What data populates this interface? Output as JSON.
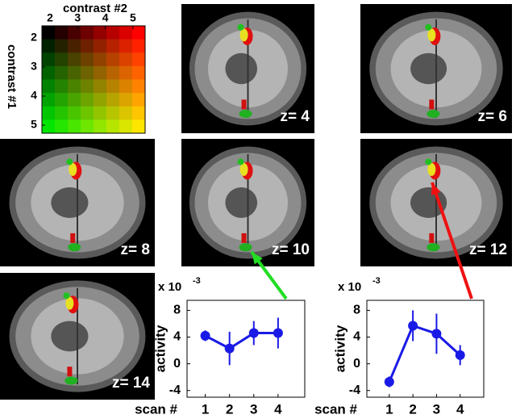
{
  "legend": {
    "title_x": "contrast #2",
    "title_y": "contrast #1",
    "xticks": [
      2,
      3,
      4,
      5
    ],
    "yticks": [
      2,
      3,
      4,
      5
    ]
  },
  "slices": [
    {
      "label": "z= 4"
    },
    {
      "label": "z= 6"
    },
    {
      "label": "z= 8"
    },
    {
      "label": "z= 10"
    },
    {
      "label": "z= 12"
    },
    {
      "label": "z= 14"
    }
  ],
  "chart_data": [
    {
      "type": "line",
      "xlabel": "scan #",
      "ylabel": "activity",
      "exponent_base": "x 10",
      "exponent": "-3",
      "x": [
        1,
        2,
        3,
        4
      ],
      "series": [
        {
          "color": "#1a1ae6",
          "values": [
            4.2,
            2.3,
            4.6,
            4.6
          ],
          "errors": [
            0.8,
            2.5,
            1.8,
            2.3
          ]
        }
      ],
      "xlim": [
        0.25,
        5.1
      ],
      "ylim": [
        -5,
        9.5
      ],
      "xticks": [
        1,
        2,
        3,
        4
      ],
      "yticks": [
        -4,
        0,
        4,
        8
      ]
    },
    {
      "type": "line",
      "xlabel": "scan #",
      "ylabel": "activity",
      "exponent_base": "x 10",
      "exponent": "-3",
      "x": [
        1,
        2,
        3,
        4
      ],
      "series": [
        {
          "color": "#1a1ae6",
          "values": [
            -2.7,
            5.7,
            4.5,
            1.3
          ],
          "errors": [
            0.8,
            2.3,
            3.0,
            1.5
          ]
        }
      ],
      "xlim": [
        0.05,
        5.0
      ],
      "ylim": [
        -5,
        9.5
      ],
      "xticks": [
        1,
        2,
        3,
        4
      ],
      "yticks": [
        -4,
        0,
        4,
        8
      ]
    }
  ]
}
